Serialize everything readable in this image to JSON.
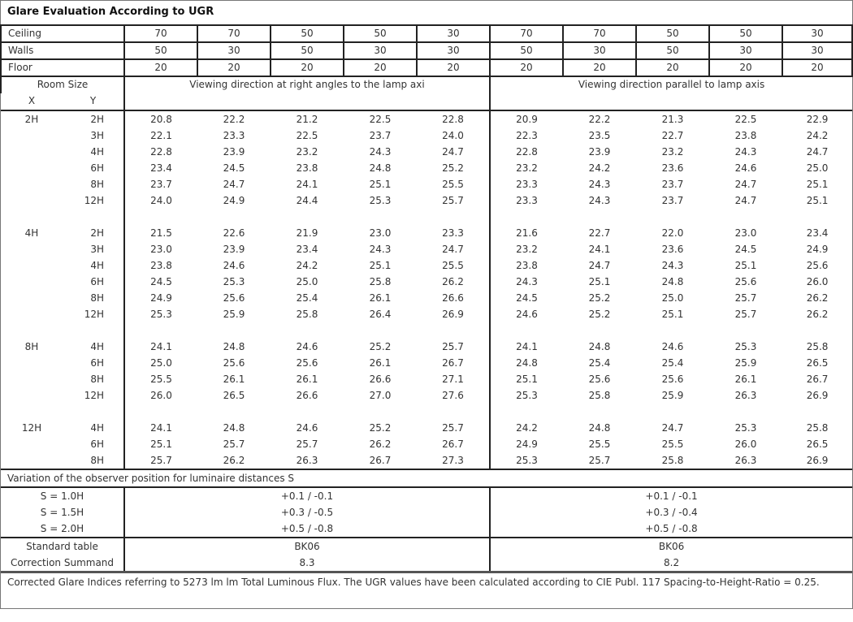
{
  "title": "Glare Evaluation According to UGR",
  "reflectances": [
    {
      "label": "Ceiling",
      "values": [
        "70",
        "70",
        "50",
        "50",
        "30",
        "70",
        "70",
        "50",
        "50",
        "30"
      ]
    },
    {
      "label": "Walls",
      "values": [
        "50",
        "30",
        "50",
        "30",
        "30",
        "50",
        "30",
        "50",
        "30",
        "30"
      ]
    },
    {
      "label": "Floor",
      "values": [
        "20",
        "20",
        "20",
        "20",
        "20",
        "20",
        "20",
        "20",
        "20",
        "20"
      ]
    }
  ],
  "header": {
    "room_size": "Room Size",
    "x": "X",
    "y": "Y",
    "right_angles": "Viewing direction at right angles to the lamp axi",
    "parallel": "Viewing direction parallel to lamp axis"
  },
  "groups": [
    {
      "x": "2H",
      "rows": [
        {
          "y": "2H",
          "v": [
            "20.8",
            "22.2",
            "21.2",
            "22.5",
            "22.8",
            "20.9",
            "22.2",
            "21.3",
            "22.5",
            "22.9"
          ]
        },
        {
          "y": "3H",
          "v": [
            "22.1",
            "23.3",
            "22.5",
            "23.7",
            "24.0",
            "22.3",
            "23.5",
            "22.7",
            "23.8",
            "24.2"
          ]
        },
        {
          "y": "4H",
          "v": [
            "22.8",
            "23.9",
            "23.2",
            "24.3",
            "24.7",
            "22.8",
            "23.9",
            "23.2",
            "24.3",
            "24.7"
          ]
        },
        {
          "y": "6H",
          "v": [
            "23.4",
            "24.5",
            "23.8",
            "24.8",
            "25.2",
            "23.2",
            "24.2",
            "23.6",
            "24.6",
            "25.0"
          ]
        },
        {
          "y": "8H",
          "v": [
            "23.7",
            "24.7",
            "24.1",
            "25.1",
            "25.5",
            "23.3",
            "24.3",
            "23.7",
            "24.7",
            "25.1"
          ]
        },
        {
          "y": "12H",
          "v": [
            "24.0",
            "24.9",
            "24.4",
            "25.3",
            "25.7",
            "23.3",
            "24.3",
            "23.7",
            "24.7",
            "25.1"
          ]
        }
      ]
    },
    {
      "x": "4H",
      "rows": [
        {
          "y": "2H",
          "v": [
            "21.5",
            "22.6",
            "21.9",
            "23.0",
            "23.3",
            "21.6",
            "22.7",
            "22.0",
            "23.0",
            "23.4"
          ]
        },
        {
          "y": "3H",
          "v": [
            "23.0",
            "23.9",
            "23.4",
            "24.3",
            "24.7",
            "23.2",
            "24.1",
            "23.6",
            "24.5",
            "24.9"
          ]
        },
        {
          "y": "4H",
          "v": [
            "23.8",
            "24.6",
            "24.2",
            "25.1",
            "25.5",
            "23.8",
            "24.7",
            "24.3",
            "25.1",
            "25.6"
          ]
        },
        {
          "y": "6H",
          "v": [
            "24.5",
            "25.3",
            "25.0",
            "25.8",
            "26.2",
            "24.3",
            "25.1",
            "24.8",
            "25.6",
            "26.0"
          ]
        },
        {
          "y": "8H",
          "v": [
            "24.9",
            "25.6",
            "25.4",
            "26.1",
            "26.6",
            "24.5",
            "25.2",
            "25.0",
            "25.7",
            "26.2"
          ]
        },
        {
          "y": "12H",
          "v": [
            "25.3",
            "25.9",
            "25.8",
            "26.4",
            "26.9",
            "24.6",
            "25.2",
            "25.1",
            "25.7",
            "26.2"
          ]
        }
      ]
    },
    {
      "x": "8H",
      "rows": [
        {
          "y": "4H",
          "v": [
            "24.1",
            "24.8",
            "24.6",
            "25.2",
            "25.7",
            "24.1",
            "24.8",
            "24.6",
            "25.3",
            "25.8"
          ]
        },
        {
          "y": "6H",
          "v": [
            "25.0",
            "25.6",
            "25.6",
            "26.1",
            "26.7",
            "24.8",
            "25.4",
            "25.4",
            "25.9",
            "26.5"
          ]
        },
        {
          "y": "8H",
          "v": [
            "25.5",
            "26.1",
            "26.1",
            "26.6",
            "27.1",
            "25.1",
            "25.6",
            "25.6",
            "26.1",
            "26.7"
          ]
        },
        {
          "y": "12H",
          "v": [
            "26.0",
            "26.5",
            "26.6",
            "27.0",
            "27.6",
            "25.3",
            "25.8",
            "25.9",
            "26.3",
            "26.9"
          ]
        }
      ]
    },
    {
      "x": "12H",
      "rows": [
        {
          "y": "4H",
          "v": [
            "24.1",
            "24.8",
            "24.6",
            "25.2",
            "25.7",
            "24.2",
            "24.8",
            "24.7",
            "25.3",
            "25.8"
          ]
        },
        {
          "y": "6H",
          "v": [
            "25.1",
            "25.7",
            "25.7",
            "26.2",
            "26.7",
            "24.9",
            "25.5",
            "25.5",
            "26.0",
            "26.5"
          ]
        },
        {
          "y": "8H",
          "v": [
            "25.7",
            "26.2",
            "26.3",
            "26.7",
            "27.3",
            "25.3",
            "25.7",
            "25.8",
            "26.3",
            "26.9"
          ]
        }
      ]
    }
  ],
  "variation": {
    "title": "Variation of the observer position for luminaire distances S",
    "rows": [
      {
        "label": "S = 1.0H",
        "right": "+0.1 / -0.1",
        "parallel": "+0.1 / -0.1"
      },
      {
        "label": "S = 1.5H",
        "right": "+0.3 / -0.5",
        "parallel": "+0.3 / -0.4"
      },
      {
        "label": "S = 2.0H",
        "right": "+0.5 / -0.8",
        "parallel": "+0.5 / -0.8"
      }
    ]
  },
  "standard": [
    {
      "label": "Standard table",
      "right": "BK06",
      "parallel": "BK06"
    },
    {
      "label": "Correction Summand",
      "right": "8.3",
      "parallel": "8.2"
    }
  ],
  "footer": "Corrected Glare Indices referring to 5273 lm lm Total Luminous Flux. The UGR values have been calculated according to CIE Publ. 117    Spacing-to-Height-Ratio = 0.25."
}
